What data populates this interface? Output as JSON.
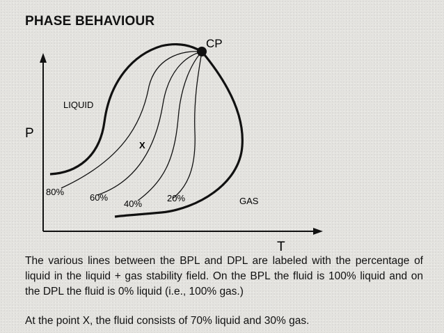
{
  "title": "PHASE BEHAVIOUR",
  "diagram": {
    "axis_p": "P",
    "axis_t": "T",
    "critical_point": "CP",
    "region_liquid": "LIQUID",
    "region_gas": "GAS",
    "point_x": "X",
    "pct_80": "80%",
    "pct_60": "60%",
    "pct_40": "40%",
    "pct_20": "20%"
  },
  "text": {
    "paragraph1": "The various lines between the BPL and DPL are labeled with the percentage of liquid in the liquid + gas stability field. On the BPL the fluid is 100% liquid and on the DPL the fluid is 0% liquid (i.e., 100% gas.)",
    "paragraph2": "At the point X, the fluid consists of 70% liquid and 30% gas."
  }
}
